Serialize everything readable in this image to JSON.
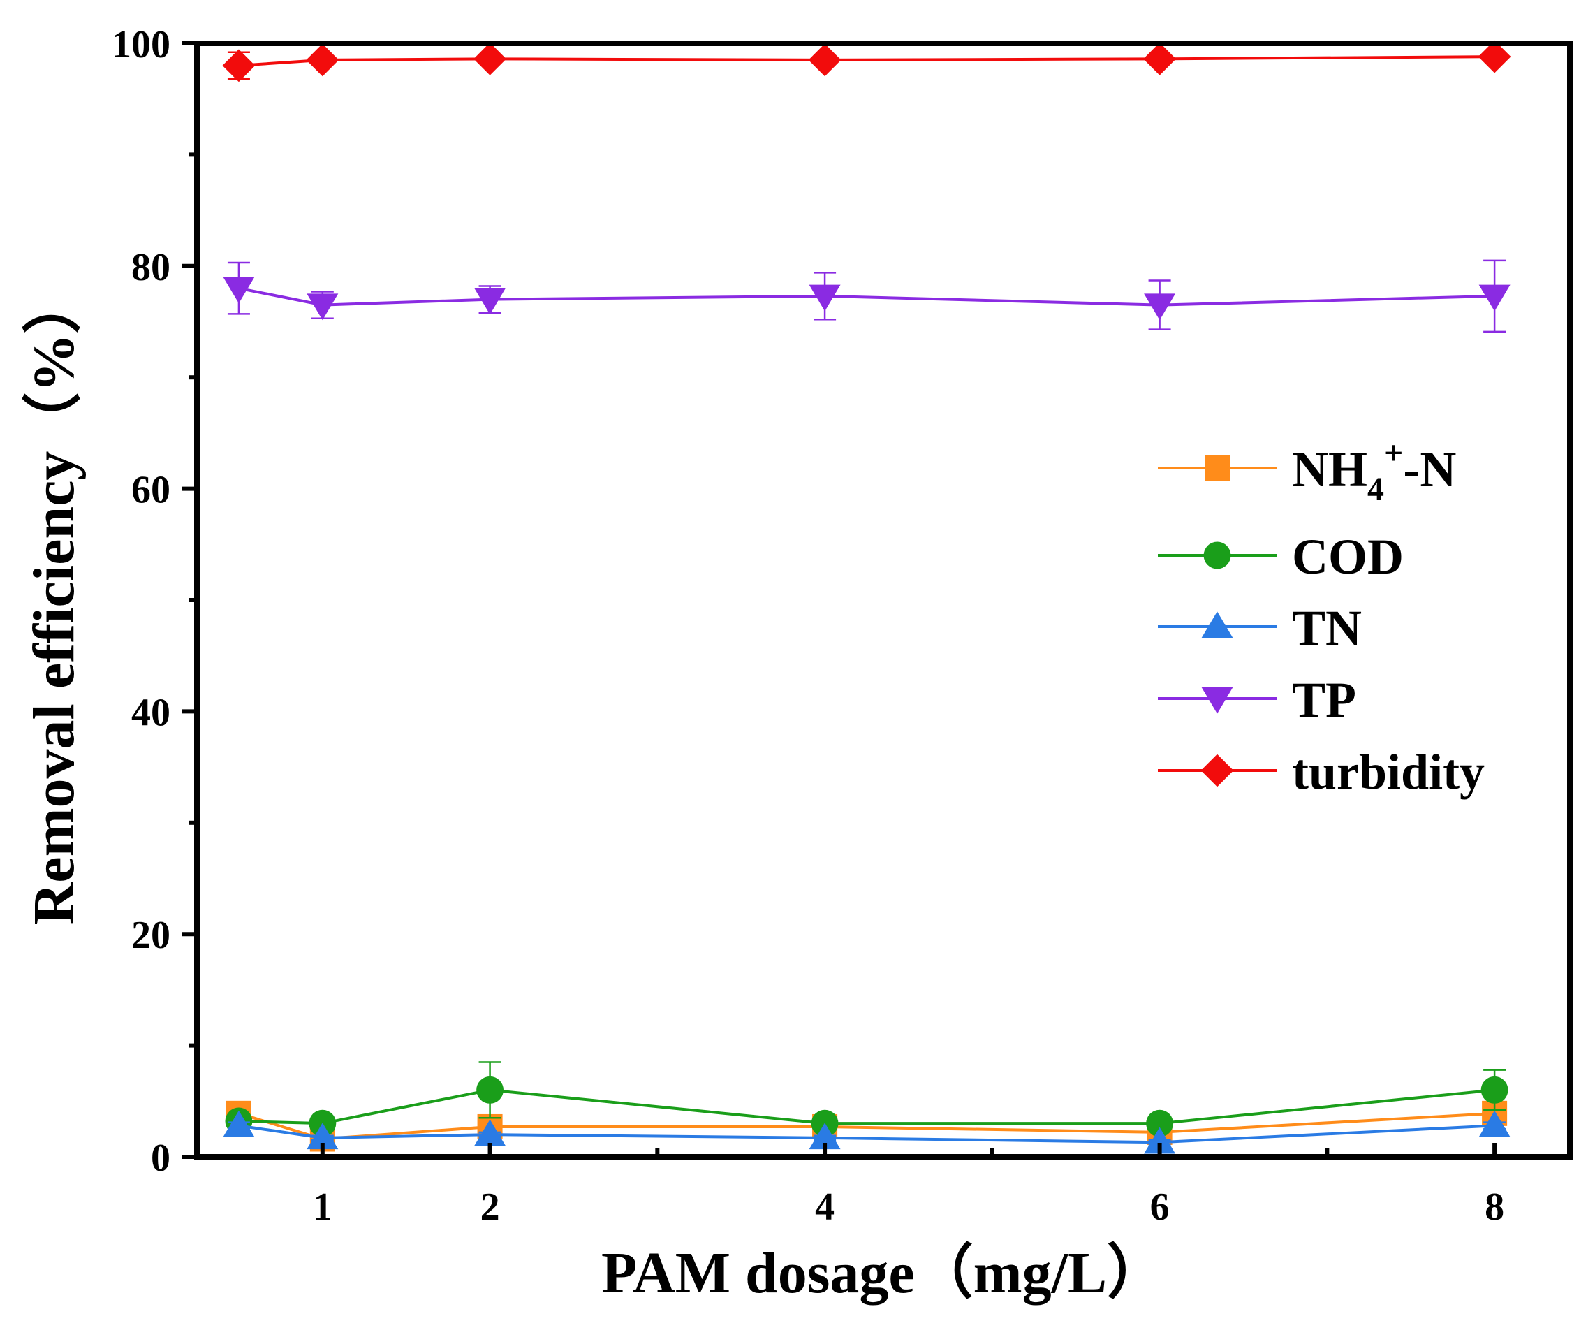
{
  "chart_data": {
    "type": "line",
    "xlabel": "PAM dosage（mg/L）",
    "ylabel": "Removal efficiency（%）",
    "xlim": [
      0.25,
      8.45
    ],
    "ylim": [
      0,
      100
    ],
    "x_ticks": [
      1,
      2,
      4,
      6,
      8
    ],
    "y_ticks": [
      0,
      20,
      40,
      60,
      80,
      100
    ],
    "x_minor_ticks": [
      3,
      5,
      7
    ],
    "y_minor_ticks": [
      10,
      30,
      50,
      70,
      90
    ],
    "grid": false,
    "legend_position": "right",
    "x": [
      0.5,
      1,
      2,
      4,
      6,
      8
    ],
    "series": [
      {
        "name": "NH4+-N",
        "legend_main": "NH",
        "legend_sub": "4",
        "legend_sup": "+",
        "legend_tail": "-N",
        "color": "#FF8C1A",
        "marker": "square",
        "values": [
          3.9,
          1.6,
          2.7,
          2.7,
          2.2,
          3.9
        ],
        "errors": [
          0.4,
          0.3,
          0.3,
          0.3,
          0.3,
          0.4
        ]
      },
      {
        "name": "COD",
        "color": "#1A9E1A",
        "marker": "circle",
        "values": [
          3.2,
          3.0,
          6.0,
          3.0,
          3.0,
          6.0
        ],
        "errors": [
          0.3,
          0.3,
          2.5,
          0.4,
          0.3,
          1.8
        ]
      },
      {
        "name": "TN",
        "color": "#2A7BE4",
        "marker": "triangle-up",
        "values": [
          2.8,
          1.7,
          2.0,
          1.7,
          1.3,
          2.8
        ],
        "errors": [
          0.3,
          0.2,
          0.2,
          0.2,
          0.2,
          0.3
        ]
      },
      {
        "name": "TP",
        "color": "#8A2BE2",
        "marker": "triangle-down",
        "values": [
          78.0,
          76.5,
          77.0,
          77.3,
          76.5,
          77.3
        ],
        "errors": [
          2.3,
          1.2,
          1.2,
          2.1,
          2.2,
          3.2
        ]
      },
      {
        "name": "turbidity",
        "color": "#F20C0C",
        "marker": "diamond",
        "values": [
          98.0,
          98.5,
          98.6,
          98.5,
          98.6,
          98.8
        ],
        "errors": [
          1.2,
          0.3,
          0.3,
          0.3,
          0.3,
          0.3
        ]
      }
    ]
  }
}
